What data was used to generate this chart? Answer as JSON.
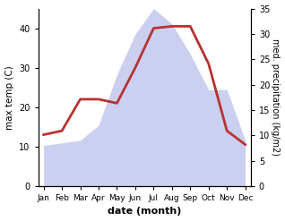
{
  "months": [
    "Jan",
    "Feb",
    "Mar",
    "Apr",
    "May",
    "Jun",
    "Jul",
    "Aug",
    "Sep",
    "Oct",
    "Nov",
    "Dec"
  ],
  "temp": [
    13.0,
    14.0,
    22.0,
    22.0,
    21.0,
    30.0,
    40.0,
    40.5,
    40.5,
    31.0,
    14.0,
    10.5
  ],
  "precip": [
    8.0,
    8.5,
    9.0,
    12.0,
    22.0,
    30.0,
    35.0,
    32.0,
    26.0,
    19.0,
    19.0,
    9.0
  ],
  "ylim_left": [
    0,
    45
  ],
  "ylim_right": [
    0,
    35
  ],
  "yticks_left": [
    0,
    10,
    20,
    30,
    40
  ],
  "yticks_right": [
    0,
    5,
    10,
    15,
    20,
    25,
    30,
    35
  ],
  "xlabel": "date (month)",
  "ylabel_left": "max temp (C)",
  "ylabel_right": "med. precipitation (kg/m2)",
  "fill_color": "#b0b8e8",
  "fill_alpha": 0.65,
  "line_color": "#b83232",
  "line_width": 2.0,
  "bg_color": "#ffffff"
}
